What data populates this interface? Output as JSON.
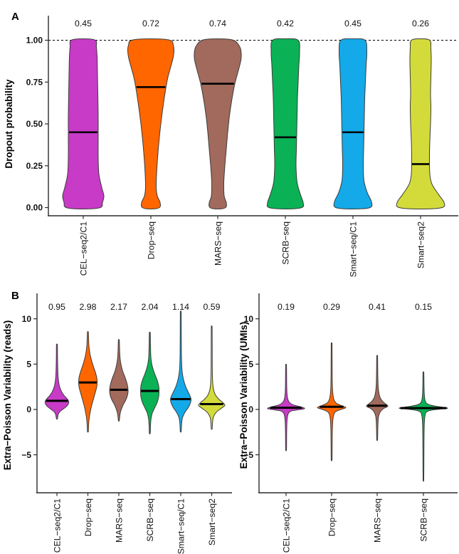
{
  "figure": {
    "panel_a_label": "A",
    "panel_b_label": "B"
  },
  "chart_data": [
    {
      "panel": "A",
      "type": "violin",
      "ylabel": "Dropout probability",
      "ylim": [
        0,
        1
      ],
      "yticks": [
        0.0,
        0.25,
        0.5,
        0.75,
        1.0
      ],
      "ytick_labels": [
        "0.00",
        "0.25",
        "0.50",
        "0.75",
        "1.00"
      ],
      "reference_line": 1.0,
      "grid": false,
      "legend": "none",
      "categories": [
        "CEL−seq2/C1",
        "Drop−seq",
        "MARS−seq",
        "SCRB−seq",
        "Smart−seq/C1",
        "Smart−seq2"
      ],
      "colors": [
        "#C73BC7",
        "#FF6600",
        "#A16A5C",
        "#0AB155",
        "#14A9E8",
        "#D3DB3B"
      ],
      "means": [
        0.45,
        0.72,
        0.74,
        0.42,
        0.45,
        0.26
      ],
      "annotations": [
        "0.45",
        "0.72",
        "0.74",
        "0.42",
        "0.45",
        "0.26"
      ],
      "violin_profiles": [
        [
          [
            0,
            24
          ],
          [
            0.03,
            27
          ],
          [
            0.07,
            29
          ],
          [
            0.12,
            26
          ],
          [
            0.2,
            22
          ],
          [
            0.3,
            21
          ],
          [
            0.42,
            21
          ],
          [
            0.55,
            21
          ],
          [
            0.68,
            20.5
          ],
          [
            0.8,
            20
          ],
          [
            0.9,
            19.5
          ],
          [
            0.96,
            18.5
          ],
          [
            1,
            17
          ]
        ],
        [
          [
            0,
            12
          ],
          [
            0.03,
            13
          ],
          [
            0.07,
            9
          ],
          [
            0.12,
            7.5
          ],
          [
            0.2,
            8
          ],
          [
            0.3,
            9.5
          ],
          [
            0.4,
            11.5
          ],
          [
            0.5,
            14
          ],
          [
            0.6,
            17
          ],
          [
            0.7,
            20.5
          ],
          [
            0.78,
            24
          ],
          [
            0.85,
            28.5
          ],
          [
            0.9,
            31.5
          ],
          [
            0.94,
            32.5
          ],
          [
            0.97,
            31.5
          ],
          [
            1,
            27
          ]
        ],
        [
          [
            0,
            11
          ],
          [
            0.03,
            12
          ],
          [
            0.07,
            9
          ],
          [
            0.15,
            8.5
          ],
          [
            0.25,
            10
          ],
          [
            0.35,
            12
          ],
          [
            0.45,
            14
          ],
          [
            0.55,
            16.5
          ],
          [
            0.65,
            20
          ],
          [
            0.74,
            24
          ],
          [
            0.82,
            29
          ],
          [
            0.88,
            32.5
          ],
          [
            0.92,
            33
          ],
          [
            0.96,
            31
          ],
          [
            1,
            22
          ]
        ],
        [
          [
            0,
            23
          ],
          [
            0.03,
            25
          ],
          [
            0.08,
            21
          ],
          [
            0.15,
            16.5
          ],
          [
            0.25,
            15
          ],
          [
            0.35,
            15.5
          ],
          [
            0.45,
            16
          ],
          [
            0.55,
            16.5
          ],
          [
            0.65,
            17
          ],
          [
            0.75,
            18
          ],
          [
            0.85,
            19
          ],
          [
            0.93,
            20
          ],
          [
            1,
            18
          ]
        ],
        [
          [
            0,
            24
          ],
          [
            0.035,
            26
          ],
          [
            0.09,
            20
          ],
          [
            0.16,
            15.5
          ],
          [
            0.25,
            14.5
          ],
          [
            0.35,
            15
          ],
          [
            0.45,
            15.5
          ],
          [
            0.55,
            16
          ],
          [
            0.65,
            16.5
          ],
          [
            0.75,
            17.5
          ],
          [
            0.85,
            18.5
          ],
          [
            0.93,
            19.5
          ],
          [
            1,
            17
          ]
        ],
        [
          [
            0,
            30
          ],
          [
            0.03,
            33
          ],
          [
            0.08,
            25
          ],
          [
            0.14,
            16
          ],
          [
            0.2,
            13
          ],
          [
            0.3,
            12.5
          ],
          [
            0.4,
            13
          ],
          [
            0.5,
            14
          ],
          [
            0.6,
            14.5
          ],
          [
            0.68,
            14
          ],
          [
            0.78,
            14.5
          ],
          [
            0.88,
            15
          ],
          [
            0.95,
            14.5
          ],
          [
            1,
            13
          ]
        ]
      ]
    },
    {
      "panel": "B-left",
      "type": "violin",
      "ylabel": "Extra−Poisson Variability (reads)",
      "ylim": [
        -8,
        12
      ],
      "yticks": [
        -5,
        0,
        5,
        10
      ],
      "ytick_labels": [
        "−5",
        "0",
        "5",
        "10"
      ],
      "reference_line": null,
      "grid": false,
      "legend": "none",
      "categories": [
        "CEL−seq2/C1",
        "Drop−seq",
        "MARS−seq",
        "SCRB−seq",
        "Smart−seq/C1",
        "Smart−seq2"
      ],
      "colors": [
        "#C73BC7",
        "#FF6600",
        "#A16A5C",
        "#0AB155",
        "#14A9E8",
        "#D3DB3B"
      ],
      "means": [
        0.95,
        2.98,
        2.17,
        2.04,
        1.14,
        0.59
      ],
      "annotations": [
        "0.95",
        "2.98",
        "2.17",
        "2.04",
        "1.14",
        "0.59"
      ],
      "violin_profiles": [
        [
          [
            -1,
            0.8
          ],
          [
            -0.55,
            1.8
          ],
          [
            -0.25,
            4
          ],
          [
            0,
            8
          ],
          [
            0.3,
            13
          ],
          [
            0.6,
            16
          ],
          [
            0.9,
            16.5
          ],
          [
            1.2,
            14
          ],
          [
            1.5,
            10.5
          ],
          [
            1.9,
            7
          ],
          [
            2.4,
            4.2
          ],
          [
            3,
            2.5
          ],
          [
            3.8,
            1.5
          ],
          [
            5,
            1
          ],
          [
            6,
            0.8
          ],
          [
            7.1,
            0.7
          ]
        ],
        [
          [
            -2.4,
            0.7
          ],
          [
            -1.6,
            1.1
          ],
          [
            -0.9,
            2
          ],
          [
            -0.2,
            3.5
          ],
          [
            0.5,
            5.5
          ],
          [
            1.2,
            8
          ],
          [
            1.9,
            10.5
          ],
          [
            2.5,
            12.5
          ],
          [
            3,
            13
          ],
          [
            3.5,
            12.5
          ],
          [
            4.1,
            10.5
          ],
          [
            4.8,
            7.5
          ],
          [
            5.5,
            4.8
          ],
          [
            6.2,
            2.8
          ],
          [
            7,
            1.5
          ],
          [
            7.8,
            1
          ],
          [
            8.5,
            0.7
          ]
        ],
        [
          [
            -1.2,
            0.7
          ],
          [
            -0.6,
            1.5
          ],
          [
            -0.1,
            3
          ],
          [
            0.5,
            6
          ],
          [
            1,
            9.5
          ],
          [
            1.5,
            12
          ],
          [
            2,
            13
          ],
          [
            2.5,
            12.5
          ],
          [
            3,
            11
          ],
          [
            3.6,
            8.5
          ],
          [
            4.2,
            5.5
          ],
          [
            4.9,
            3.2
          ],
          [
            5.6,
            1.8
          ],
          [
            6.5,
            1.1
          ],
          [
            7.6,
            0.7
          ]
        ],
        [
          [
            -2.6,
            0.7
          ],
          [
            -1.8,
            1
          ],
          [
            -1,
            1.8
          ],
          [
            -0.4,
            3.5
          ],
          [
            0.2,
            7
          ],
          [
            0.8,
            10.5
          ],
          [
            1.4,
            12.5
          ],
          [
            2,
            13
          ],
          [
            2.6,
            12.5
          ],
          [
            3.2,
            10.5
          ],
          [
            3.8,
            7.5
          ],
          [
            4.4,
            4.8
          ],
          [
            5,
            2.8
          ],
          [
            5.8,
            1.5
          ],
          [
            7,
            1
          ],
          [
            8.4,
            0.7
          ]
        ],
        [
          [
            -2.4,
            0.7
          ],
          [
            -1.6,
            1.2
          ],
          [
            -0.9,
            2.5
          ],
          [
            -0.3,
            6
          ],
          [
            0.2,
            10.5
          ],
          [
            0.7,
            13.5
          ],
          [
            1.1,
            14.5
          ],
          [
            1.5,
            13
          ],
          [
            2,
            10
          ],
          [
            2.5,
            7
          ],
          [
            3.1,
            4.5
          ],
          [
            3.8,
            2.6
          ],
          [
            4.6,
            1.5
          ],
          [
            5.8,
            1
          ],
          [
            7.5,
            0.8
          ],
          [
            10.6,
            0.6
          ]
        ],
        [
          [
            -2.1,
            0.7
          ],
          [
            -1.4,
            1.2
          ],
          [
            -0.8,
            2.5
          ],
          [
            -0.3,
            6.5
          ],
          [
            0.1,
            13
          ],
          [
            0.45,
            18.5
          ],
          [
            0.8,
            15
          ],
          [
            1.1,
            10.5
          ],
          [
            1.5,
            6
          ],
          [
            2,
            3.2
          ],
          [
            2.6,
            1.8
          ],
          [
            3.5,
            1.1
          ],
          [
            5,
            0.8
          ],
          [
            8.9,
            0.6
          ]
        ]
      ]
    },
    {
      "panel": "B-right",
      "type": "violin",
      "ylabel": "Extra−Poisson Variability (UMIs)",
      "ylim": [
        -8,
        12
      ],
      "yticks": [
        -5,
        0,
        5,
        10
      ],
      "ytick_labels": [
        "−5",
        "0",
        "5",
        "10"
      ],
      "reference_line": null,
      "grid": false,
      "legend": "none",
      "categories": [
        "CEL−seq2/C1",
        "Drop−seq",
        "MARS−seq",
        "SCRB−seq"
      ],
      "colors": [
        "#C73BC7",
        "#FF6600",
        "#A16A5C",
        "#0AB155"
      ],
      "means": [
        0.19,
        0.29,
        0.41,
        0.15
      ],
      "annotations": [
        "0.19",
        "0.29",
        "0.41",
        "0.15"
      ],
      "violin_profiles": [
        [
          [
            -4.4,
            0.6
          ],
          [
            -2.8,
            0.8
          ],
          [
            -1.6,
            1.1
          ],
          [
            -0.9,
            1.8
          ],
          [
            -0.45,
            3.2
          ],
          [
            -0.18,
            7
          ],
          [
            -0.05,
            16
          ],
          [
            0.1,
            26
          ],
          [
            0.3,
            20
          ],
          [
            0.5,
            10
          ],
          [
            0.75,
            5
          ],
          [
            1.1,
            2.6
          ],
          [
            1.7,
            1.4
          ],
          [
            2.6,
            0.9
          ],
          [
            4.8,
            0.6
          ]
        ],
        [
          [
            -5.5,
            0.6
          ],
          [
            -3.8,
            0.8
          ],
          [
            -2.4,
            1
          ],
          [
            -1.4,
            1.5
          ],
          [
            -0.7,
            2.6
          ],
          [
            -0.3,
            5
          ],
          [
            -0.05,
            11
          ],
          [
            0.2,
            20
          ],
          [
            0.45,
            13
          ],
          [
            0.7,
            6.5
          ],
          [
            1.1,
            3.2
          ],
          [
            1.7,
            1.8
          ],
          [
            2.5,
            1.1
          ],
          [
            4,
            0.8
          ],
          [
            7.1,
            0.6
          ]
        ],
        [
          [
            -3.3,
            0.6
          ],
          [
            -2.2,
            0.9
          ],
          [
            -1.3,
            1.3
          ],
          [
            -0.7,
            2.2
          ],
          [
            -0.25,
            4.5
          ],
          [
            0.1,
            9
          ],
          [
            0.35,
            15
          ],
          [
            0.6,
            12
          ],
          [
            0.9,
            7.5
          ],
          [
            1.3,
            4.2
          ],
          [
            1.9,
            2.3
          ],
          [
            2.7,
            1.3
          ],
          [
            3.9,
            0.9
          ],
          [
            5.8,
            0.6
          ]
        ],
        [
          [
            -7.7,
            0.5
          ],
          [
            -5.2,
            0.7
          ],
          [
            -3.5,
            0.8
          ],
          [
            -2.2,
            1
          ],
          [
            -1.3,
            1.4
          ],
          [
            -0.7,
            2.2
          ],
          [
            -0.3,
            4
          ],
          [
            -0.1,
            10
          ],
          [
            0.05,
            24
          ],
          [
            0.15,
            34
          ],
          [
            0.35,
            18
          ],
          [
            0.55,
            7
          ],
          [
            0.85,
            3
          ],
          [
            1.4,
            1.5
          ],
          [
            2.4,
            0.9
          ],
          [
            4,
            0.6
          ]
        ]
      ]
    }
  ]
}
